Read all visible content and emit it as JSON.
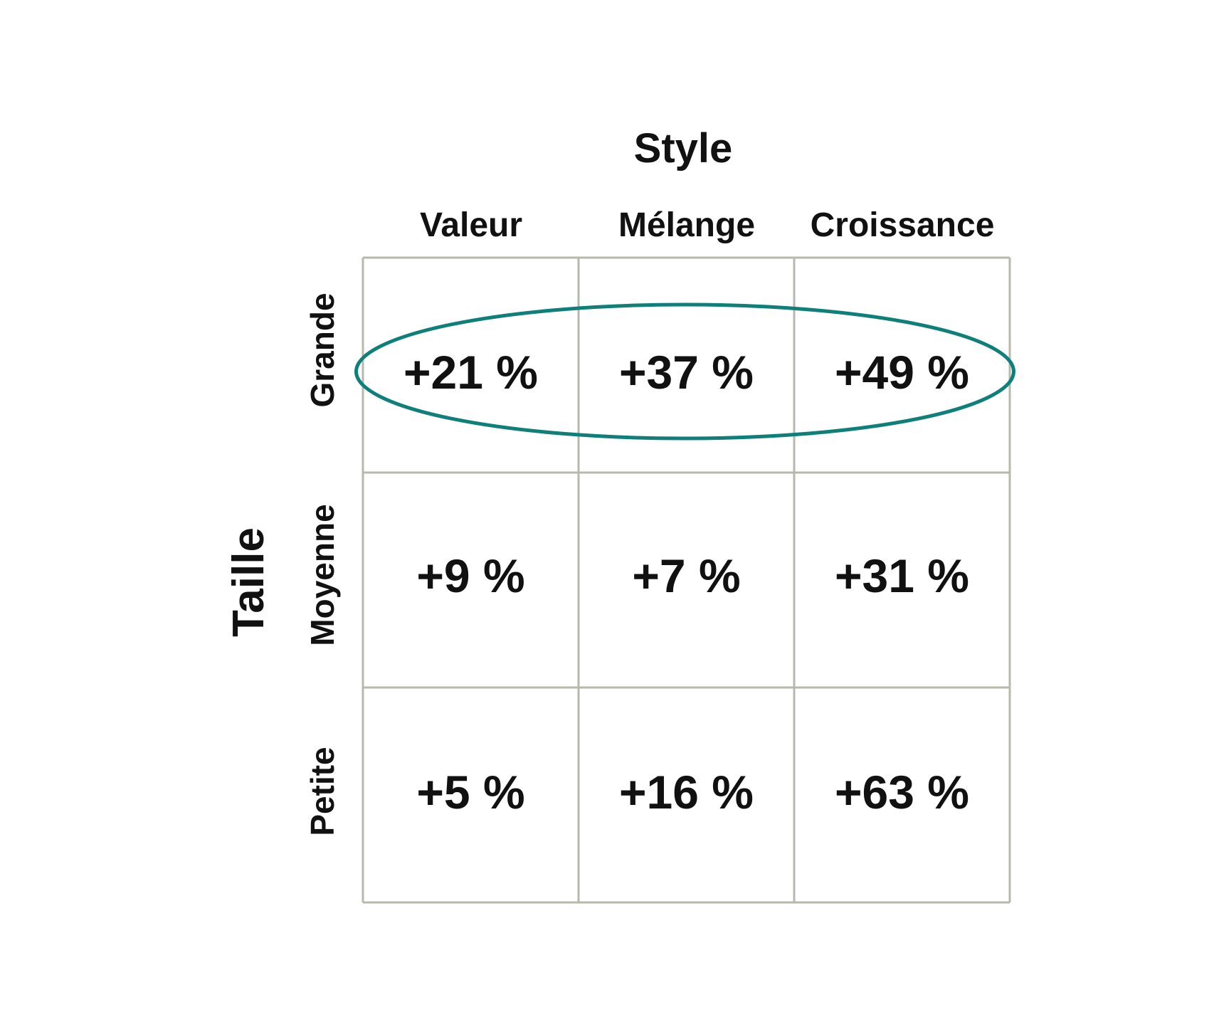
{
  "chart_data": {
    "type": "table",
    "col_axis_title": "Style",
    "row_axis_title": "Taille",
    "columns": [
      "Valeur",
      "Mélange",
      "Croissance"
    ],
    "rows": [
      "Grande",
      "Moyenne",
      "Petite"
    ],
    "cells": [
      [
        "+21 %",
        "+37 %",
        "+49 %"
      ],
      [
        "+9 %",
        "+7 %",
        "+31 %"
      ],
      [
        "+5 %",
        "+16 %",
        "+63 %"
      ]
    ],
    "values": [
      [
        21,
        37,
        49
      ],
      [
        9,
        7,
        31
      ],
      [
        5,
        16,
        63
      ]
    ],
    "highlighted_row": "Grande",
    "colors": {
      "grid": "#b8b8ac",
      "highlight": "#0f7f7a",
      "text": "#111111"
    }
  }
}
